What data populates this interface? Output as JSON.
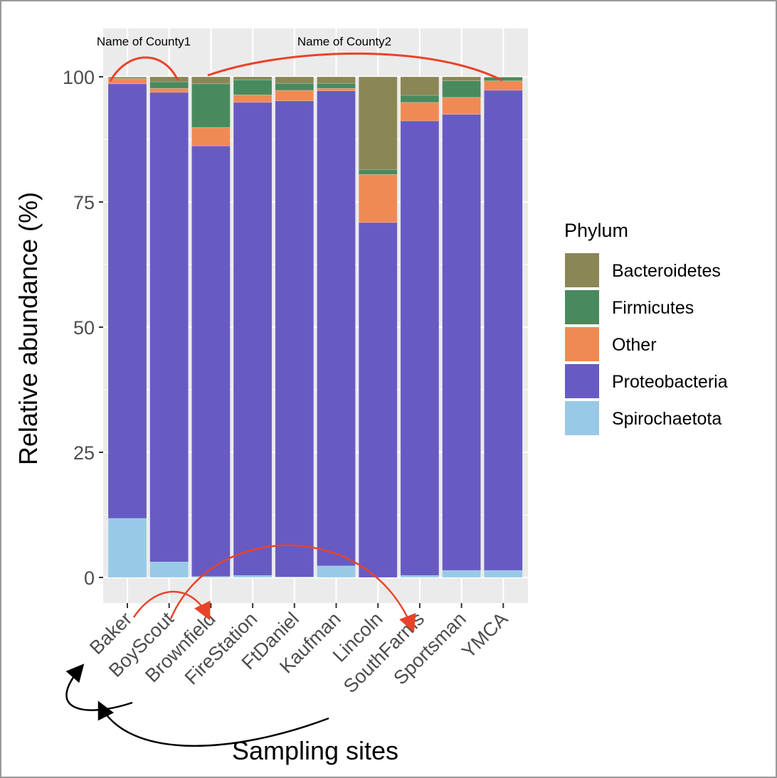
{
  "chart_data": {
    "type": "bar",
    "stacked": true,
    "categories": [
      "Baker",
      "BoyScout",
      "Brownfield",
      "FireStation",
      "FtDaniel",
      "Kaufman",
      "Lincoln",
      "SouthFarms",
      "Sportsman",
      "YMCA"
    ],
    "series": [
      {
        "name": "Spirochaetota",
        "color": "#98CAE8",
        "values": [
          11.8,
          3.1,
          0.2,
          0.4,
          0.1,
          2.3,
          0.0,
          0.4,
          1.4,
          1.4
        ]
      },
      {
        "name": "Proteobacteria",
        "color": "#675BC3",
        "values": [
          86.8,
          93.8,
          86.0,
          94.5,
          95.1,
          94.9,
          70.9,
          90.8,
          91.1,
          95.9
        ]
      },
      {
        "name": "Other",
        "color": "#EF8A55",
        "values": [
          1.1,
          0.8,
          3.7,
          1.5,
          2.1,
          0.5,
          9.6,
          3.7,
          3.4,
          1.9
        ]
      },
      {
        "name": "Firmicutes",
        "color": "#488A5E",
        "values": [
          0.2,
          1.3,
          8.7,
          3.0,
          1.4,
          1.0,
          1.0,
          1.4,
          3.3,
          0.7
        ]
      },
      {
        "name": "Bacteroidetes",
        "color": "#8B8656",
        "values": [
          0.1,
          1.0,
          1.4,
          0.6,
          1.3,
          1.3,
          18.5,
          3.7,
          0.8,
          0.1
        ]
      }
    ],
    "xlabel": "Sampling sites",
    "ylabel": "Relative abundance (%)",
    "ylim": [
      0,
      100
    ],
    "yticks": [
      "0",
      "25",
      "50",
      "75",
      "100"
    ],
    "grid": true,
    "legend": {
      "title": "Phylum",
      "placement": "right",
      "entries": [
        "Bacteroidetes",
        "Firmicutes",
        "Other",
        "Proteobacteria",
        "Spirochaetota"
      ]
    },
    "annotations": [
      "Name of County1",
      "Name of County2"
    ],
    "annotation_color": "#E8432A"
  }
}
